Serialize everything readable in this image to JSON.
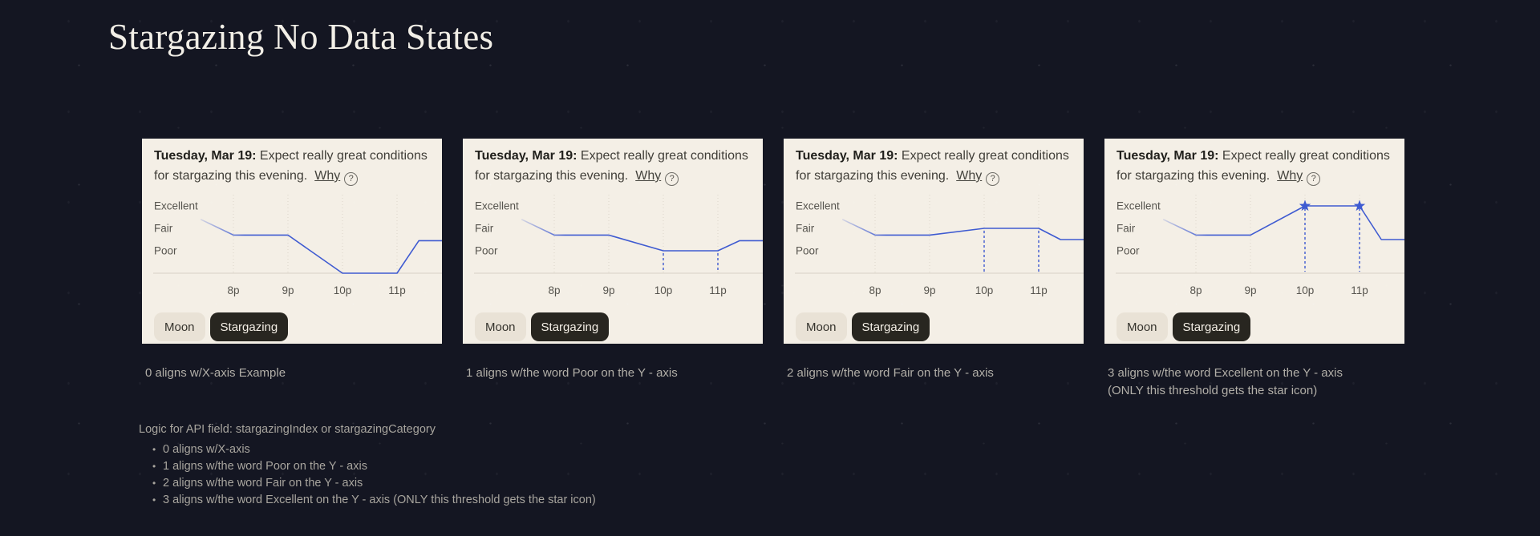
{
  "page": {
    "title": "Stargazing No Data States",
    "background_color": "#141622",
    "card_background": "#f4efe6",
    "accent_blue": "#3f5bd1"
  },
  "cards": [
    {
      "header": {
        "bold": "Tuesday, Mar 19:",
        "rest": "Expect really great conditions for stargazing this evening.",
        "why": "Why",
        "help_icon": "question-circle-icon"
      },
      "buttons": [
        {
          "label": "Moon",
          "active": false
        },
        {
          "label": "Stargazing",
          "active": true
        }
      ],
      "caption_lines": [
        "0 aligns w/X-axis Example"
      ]
    },
    {
      "header": {
        "bold": "Tuesday, Mar 19:",
        "rest": "Expect really great conditions for stargazing this evening.",
        "why": "Why",
        "help_icon": "question-circle-icon"
      },
      "buttons": [
        {
          "label": "Moon",
          "active": false
        },
        {
          "label": "Stargazing",
          "active": true
        }
      ],
      "caption_lines": [
        "1 aligns w/the word Poor on the Y - axis"
      ]
    },
    {
      "header": {
        "bold": "Tuesday, Mar 19:",
        "rest": "Expect really great conditions for stargazing this evening.",
        "why": "Why",
        "help_icon": "question-circle-icon"
      },
      "buttons": [
        {
          "label": "Moon",
          "active": false
        },
        {
          "label": "Stargazing",
          "active": true
        }
      ],
      "caption_lines": [
        "2 aligns w/the word Fair on the Y - axis"
      ]
    },
    {
      "header": {
        "bold": "Tuesday, Mar 19:",
        "rest": "Expect really great conditions for stargazing this evening.",
        "why": "Why",
        "help_icon": "question-circle-icon"
      },
      "buttons": [
        {
          "label": "Moon",
          "active": false
        },
        {
          "label": "Stargazing",
          "active": true
        }
      ],
      "caption_lines": [
        "3 aligns w/the word Excellent on the Y - axis",
        "(ONLY this threshold gets the star icon)"
      ]
    }
  ],
  "notes": {
    "title": "Logic for API field: stargazingIndex or stargazingCategory",
    "bullets": [
      "0 aligns w/X-axis",
      "1 aligns w/the word Poor on the Y - axis",
      "2 aligns w/the word Fair on the Y - axis",
      "3 aligns w/the word Excellent on the Y - axis (ONLY this threshold gets the star icon)"
    ]
  },
  "chart_data": [
    {
      "type": "line",
      "title": "Stargazing no-data state: 0 aligns w/X-axis",
      "y_labels": [
        "Excellent",
        "Fair",
        "Poor"
      ],
      "x_ticks": [
        "8p",
        "9p",
        "10p",
        "11p"
      ],
      "x_tick_hours": [
        8,
        9,
        10,
        11
      ],
      "x_range": [
        7.4,
        11.85
      ],
      "ylim": [
        0,
        3
      ],
      "value_legend": {
        "0": "x-axis",
        "1": "Poor",
        "2": "Fair",
        "3": "Excellent"
      },
      "no_data_value": 0,
      "points": [
        [
          7.4,
          2.4
        ],
        [
          8,
          1.7
        ],
        [
          9,
          1.7
        ],
        [
          10,
          0
        ],
        [
          11,
          0
        ],
        [
          11.4,
          1.45
        ],
        [
          11.85,
          1.45
        ]
      ],
      "dashed_drops": [],
      "star_markers": [],
      "grid": "vertical-dotted",
      "line_color": "#3f5bd1",
      "grid_color": "#ddd6ca",
      "axis_color": "#d8d1c5"
    },
    {
      "type": "line",
      "title": "Stargazing no-data state: 1 aligns w/the word Poor",
      "y_labels": [
        "Excellent",
        "Fair",
        "Poor"
      ],
      "x_ticks": [
        "8p",
        "9p",
        "10p",
        "11p"
      ],
      "x_tick_hours": [
        8,
        9,
        10,
        11
      ],
      "x_range": [
        7.4,
        11.85
      ],
      "ylim": [
        0,
        3
      ],
      "value_legend": {
        "0": "x-axis",
        "1": "Poor",
        "2": "Fair",
        "3": "Excellent"
      },
      "no_data_value": 1,
      "points": [
        [
          7.4,
          2.4
        ],
        [
          8,
          1.7
        ],
        [
          9,
          1.7
        ],
        [
          10,
          1
        ],
        [
          11,
          1
        ],
        [
          11.4,
          1.45
        ],
        [
          11.85,
          1.45
        ]
      ],
      "dashed_drops": [
        10,
        11
      ],
      "star_markers": [],
      "grid": "vertical-dotted",
      "line_color": "#3f5bd1",
      "grid_color": "#ddd6ca",
      "axis_color": "#d8d1c5"
    },
    {
      "type": "line",
      "title": "Stargazing no-data state: 2 aligns w/the word Fair",
      "y_labels": [
        "Excellent",
        "Fair",
        "Poor"
      ],
      "x_ticks": [
        "8p",
        "9p",
        "10p",
        "11p"
      ],
      "x_tick_hours": [
        8,
        9,
        10,
        11
      ],
      "x_range": [
        7.4,
        11.85
      ],
      "ylim": [
        0,
        3
      ],
      "value_legend": {
        "0": "x-axis",
        "1": "Poor",
        "2": "Fair",
        "3": "Excellent"
      },
      "no_data_value": 2,
      "points": [
        [
          7.4,
          2.4
        ],
        [
          8,
          1.7
        ],
        [
          9,
          1.7
        ],
        [
          10,
          2
        ],
        [
          11,
          2
        ],
        [
          11.4,
          1.5
        ],
        [
          11.85,
          1.5
        ]
      ],
      "dashed_drops": [
        10,
        11
      ],
      "star_markers": [],
      "grid": "vertical-dotted",
      "line_color": "#3f5bd1",
      "grid_color": "#ddd6ca",
      "axis_color": "#d8d1c5"
    },
    {
      "type": "line",
      "title": "Stargazing no-data state: 3 aligns w/the word Excellent",
      "y_labels": [
        "Excellent",
        "Fair",
        "Poor"
      ],
      "x_ticks": [
        "8p",
        "9p",
        "10p",
        "11p"
      ],
      "x_tick_hours": [
        8,
        9,
        10,
        11
      ],
      "x_range": [
        7.4,
        11.85
      ],
      "ylim": [
        0,
        3
      ],
      "value_legend": {
        "0": "x-axis",
        "1": "Poor",
        "2": "Fair",
        "3": "Excellent"
      },
      "no_data_value": 3,
      "points": [
        [
          7.4,
          2.4
        ],
        [
          8,
          1.7
        ],
        [
          9,
          1.7
        ],
        [
          10,
          3
        ],
        [
          11,
          3
        ],
        [
          11.4,
          1.5
        ],
        [
          11.85,
          1.5
        ]
      ],
      "dashed_drops": [
        10,
        11
      ],
      "star_markers": [
        10,
        11
      ],
      "grid": "vertical-dotted",
      "line_color": "#3f5bd1",
      "grid_color": "#ddd6ca",
      "axis_color": "#d8d1c5"
    }
  ]
}
